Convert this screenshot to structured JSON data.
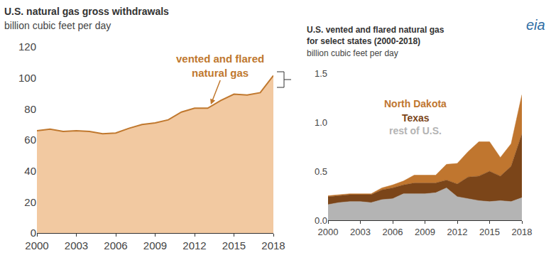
{
  "chart_data": [
    {
      "type": "area",
      "title": "U.S. natural gas gross withdrawals",
      "subtitle": "billion cubic feet per day",
      "annotation": [
        "vented and flared",
        "natural gas"
      ],
      "x": [
        2000,
        2001,
        2002,
        2003,
        2004,
        2005,
        2006,
        2007,
        2008,
        2009,
        2010,
        2011,
        2012,
        2013,
        2014,
        2015,
        2016,
        2017,
        2018
      ],
      "values": [
        66,
        67,
        65.5,
        66,
        65.5,
        64,
        64.5,
        67.5,
        70,
        71,
        73,
        78,
        80.5,
        80.5,
        85.5,
        89.5,
        89,
        90.5,
        101.5
      ],
      "color": "#f2c9a1",
      "xlim": [
        2000,
        2018
      ],
      "xticks": [
        2000,
        2003,
        2006,
        2009,
        2012,
        2015,
        2018
      ],
      "ylim": [
        0,
        120
      ],
      "yticks": [
        0,
        20,
        40,
        60,
        80,
        100,
        120
      ],
      "grid": false
    },
    {
      "type": "area",
      "title": [
        "U.S. vented and flared natural gas",
        "for select states (2000-2018)"
      ],
      "subtitle": "billion cubic feet per day",
      "logo": "eia",
      "stacked": true,
      "x": [
        2000,
        2001,
        2002,
        2003,
        2004,
        2005,
        2006,
        2007,
        2008,
        2009,
        2010,
        2011,
        2012,
        2013,
        2014,
        2015,
        2016,
        2017,
        2018
      ],
      "series": [
        {
          "name": "rest of U.S.",
          "color": "#b4b4b4",
          "values": [
            0.16,
            0.18,
            0.19,
            0.19,
            0.18,
            0.21,
            0.22,
            0.27,
            0.27,
            0.27,
            0.28,
            0.33,
            0.24,
            0.22,
            0.2,
            0.19,
            0.2,
            0.19,
            0.23
          ]
        },
        {
          "name": "Texas",
          "color": "#7b4519",
          "values": [
            0.08,
            0.07,
            0.07,
            0.07,
            0.08,
            0.1,
            0.11,
            0.09,
            0.11,
            0.11,
            0.1,
            0.08,
            0.13,
            0.22,
            0.25,
            0.31,
            0.25,
            0.36,
            0.65
          ]
        },
        {
          "name": "North Dakota",
          "color": "#c0762f",
          "values": [
            0.01,
            0.01,
            0.01,
            0.01,
            0.01,
            0.02,
            0.03,
            0.04,
            0.08,
            0.08,
            0.08,
            0.16,
            0.21,
            0.26,
            0.35,
            0.3,
            0.19,
            0.23,
            0.4
          ]
        }
      ],
      "xlim": [
        2000,
        2018
      ],
      "xticks": [
        2000,
        2003,
        2006,
        2009,
        2012,
        2015,
        2018
      ],
      "ylim": [
        0,
        1.5
      ],
      "yticks": [
        {
          "value": 0,
          "label": "0.0"
        },
        {
          "value": 0.5,
          "label": "0.5"
        },
        {
          "value": 1,
          "label": "1.0"
        },
        {
          "value": 1.5,
          "label": "1.5"
        }
      ],
      "grid": false
    }
  ]
}
